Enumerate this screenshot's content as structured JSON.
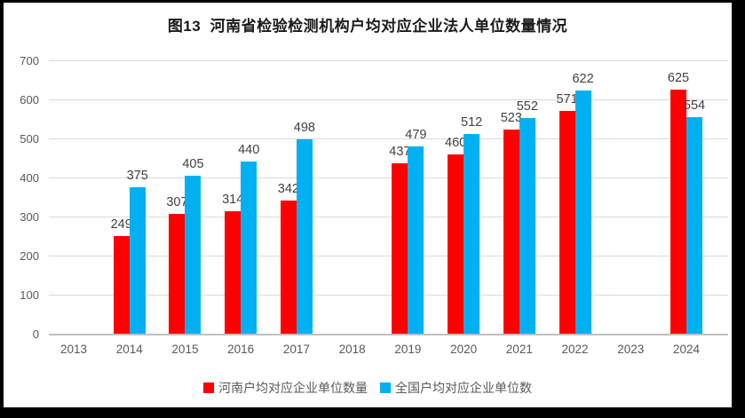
{
  "chart_data": {
    "type": "bar",
    "title": "图13  河南省检验检测机构户均对应企业法人单位数量情况",
    "categories": [
      "2013",
      "2014",
      "2015",
      "2016",
      "2017",
      "2018",
      "2019",
      "2020",
      "2021",
      "2022",
      "2023",
      "2024"
    ],
    "series": [
      {
        "name": "河南户均对应企业单位数量",
        "color": "#ff0000",
        "values": [
          null,
          249,
          307,
          314,
          342,
          null,
          437,
          460,
          523,
          571,
          null,
          625
        ]
      },
      {
        "name": "全国户均对应企业单位数",
        "color": "#00b0f0",
        "values": [
          null,
          375,
          405,
          440,
          498,
          null,
          479,
          512,
          552,
          622,
          null,
          554
        ]
      }
    ],
    "xlabel": "",
    "ylabel": "",
    "ylim": [
      0,
      700
    ],
    "ytick_step": 100,
    "grid": true,
    "legend_position": "bottom",
    "colors": {
      "henan_series": "#ff0000",
      "national_series": "#00b0f0",
      "gridline": "#d9d9d9",
      "axis_line": "#bfbfbf",
      "tick_label": "#595959",
      "data_label": "#404040",
      "frame_border": "#000000"
    }
  }
}
